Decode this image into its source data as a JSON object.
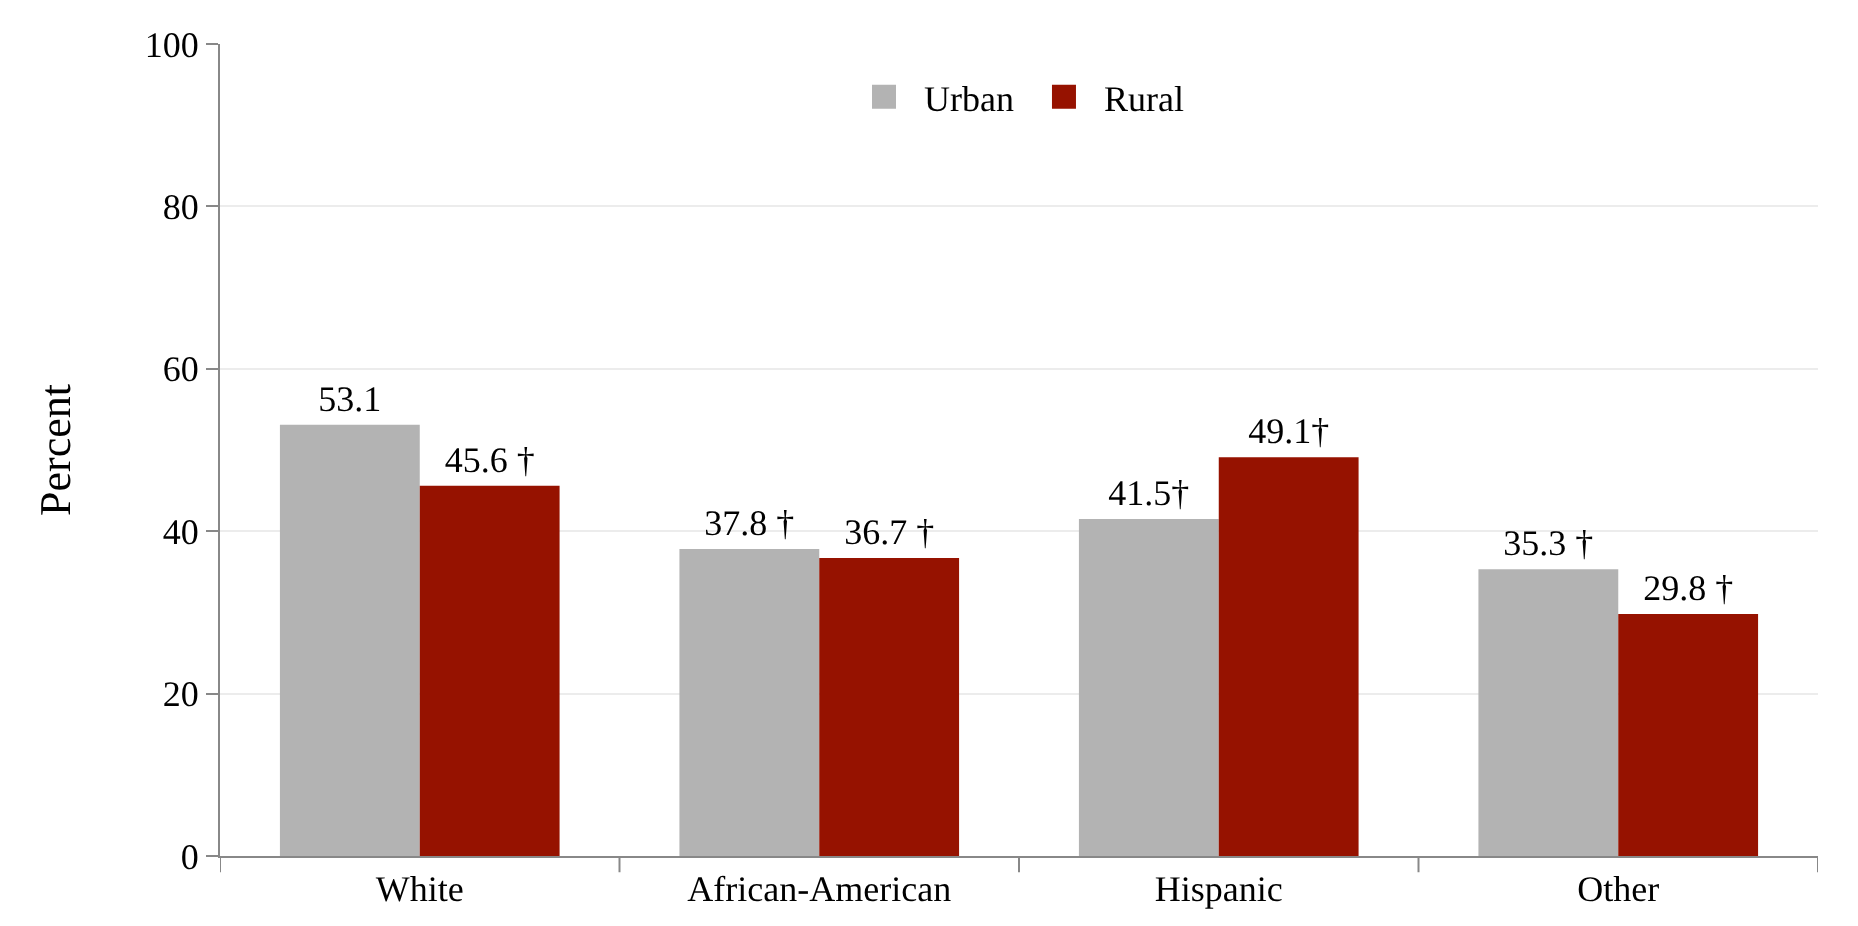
{
  "chart_data": {
    "type": "bar",
    "ylabel": "Percent",
    "categories": [
      "White",
      "African-American",
      "Hispanic",
      "Other"
    ],
    "series": [
      {
        "name": "Urban",
        "color": "#b3b3b3",
        "values": [
          53.1,
          37.8,
          41.5,
          35.3
        ],
        "value_labels": [
          "53.1",
          "37.8 †",
          "41.5†",
          "35.3 †"
        ]
      },
      {
        "name": "Rural",
        "color": "#961200",
        "values": [
          45.6,
          36.7,
          49.1,
          29.8
        ],
        "value_labels": [
          "45.6 †",
          "36.7 †",
          "49.1†",
          "29.8 †"
        ]
      }
    ],
    "ylim": [
      0,
      100
    ],
    "yticks": [
      0,
      20,
      40,
      60,
      80,
      100
    ],
    "grid": "y",
    "legend": "top"
  }
}
